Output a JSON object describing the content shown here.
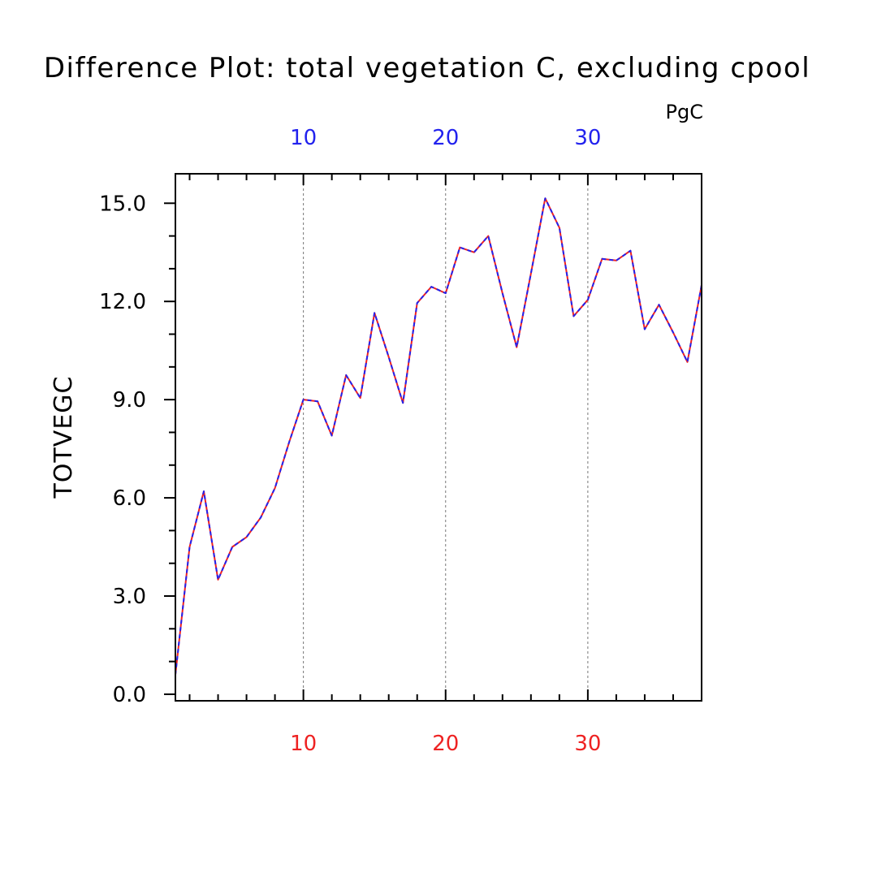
{
  "chart_data": {
    "type": "line",
    "title": "Difference Plot: total vegetation C, excluding cpool",
    "units": "PgC",
    "xlabel": "",
    "ylabel": "TOTVEGC",
    "xlim": [
      1,
      38
    ],
    "ylim": [
      -0.2,
      15.9
    ],
    "x_ticks": [
      10,
      20,
      30
    ],
    "x_tick_labels": [
      "10",
      "20",
      "30"
    ],
    "y_ticks": [
      0,
      3,
      6,
      9,
      12,
      15
    ],
    "y_tick_labels": [
      "0.0",
      "3.0",
      "6.0",
      "9.0",
      "12.0",
      "15.0"
    ],
    "grid": "vertical dashed at major x ticks",
    "top_axis_color": "#2222ee",
    "bottom_axis_color": "#ee2222",
    "x": [
      1,
      2,
      3,
      4,
      5,
      6,
      7,
      8,
      9,
      10,
      11,
      12,
      13,
      14,
      15,
      16,
      17,
      18,
      19,
      20,
      21,
      22,
      23,
      24,
      25,
      26,
      27,
      28,
      29,
      30,
      31,
      32,
      33,
      34,
      35,
      36,
      37,
      38
    ],
    "series": [
      {
        "color": "#ee2222",
        "style": "solid",
        "values": [
          0.6,
          4.5,
          6.2,
          3.5,
          4.5,
          4.8,
          5.4,
          6.3,
          7.7,
          9.0,
          8.95,
          7.9,
          9.75,
          9.05,
          11.65,
          10.3,
          8.9,
          11.95,
          12.45,
          12.25,
          13.65,
          13.5,
          14.0,
          12.25,
          10.6,
          12.85,
          15.15,
          14.25,
          11.55,
          12.05,
          13.3,
          13.25,
          13.55,
          11.15,
          11.9,
          11.05,
          10.15,
          12.5
        ]
      },
      {
        "color": "#2222ee",
        "style": "dashed",
        "values": [
          0.6,
          4.5,
          6.2,
          3.5,
          4.5,
          4.8,
          5.4,
          6.3,
          7.7,
          9.0,
          8.95,
          7.9,
          9.75,
          9.05,
          11.65,
          10.3,
          8.9,
          11.95,
          12.45,
          12.25,
          13.65,
          13.5,
          14.0,
          12.25,
          10.6,
          12.85,
          15.15,
          14.25,
          11.55,
          12.05,
          13.3,
          13.25,
          13.55,
          11.15,
          11.9,
          11.05,
          10.15,
          12.5
        ]
      }
    ]
  }
}
